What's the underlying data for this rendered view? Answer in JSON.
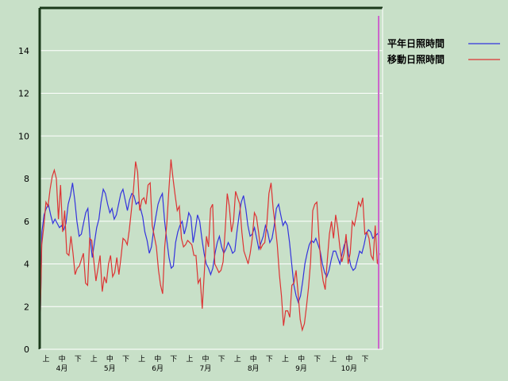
{
  "chart_data": {
    "type": "line",
    "ylim": [
      0,
      16
    ],
    "yticks": [
      "0",
      "2",
      "4",
      "6",
      "8",
      "10",
      "12",
      "14"
    ],
    "grid": true,
    "legend_position": "top-right",
    "x_dekad_labels": [
      "上",
      "中",
      "下",
      "上",
      "中",
      "下",
      "上",
      "中",
      "下",
      "上",
      "中",
      "下",
      "上",
      "中",
      "下",
      "上",
      "中",
      "下",
      "上",
      "中",
      "下"
    ],
    "x_month_labels": [
      "4月",
      "5月",
      "6月",
      "7月",
      "8月",
      "9月",
      "10月"
    ],
    "series": [
      {
        "name": "平年日照時間",
        "color": "#3333dd",
        "values": [
          0.0,
          5.5,
          6.3,
          6.6,
          6.8,
          6.3,
          5.9,
          6.1,
          5.9,
          5.7,
          5.8,
          5.6,
          5.9,
          6.8,
          7.2,
          7.8,
          7.0,
          6.0,
          5.3,
          5.4,
          5.9,
          6.4,
          6.6,
          5.2,
          4.3,
          5.0,
          5.7,
          6.1,
          6.9,
          7.5,
          7.3,
          6.8,
          6.4,
          6.6,
          6.1,
          6.3,
          6.8,
          7.3,
          7.5,
          7.0,
          6.5,
          7.0,
          7.3,
          7.2,
          6.8,
          6.9,
          6.6,
          6.2,
          5.5,
          5.1,
          4.5,
          4.8,
          5.6,
          6.2,
          6.8,
          7.1,
          7.3,
          6.0,
          5.1,
          4.3,
          3.8,
          3.9,
          5.0,
          5.5,
          5.8,
          6.0,
          5.4,
          5.8,
          6.4,
          6.2,
          5.0,
          5.6,
          6.3,
          6.0,
          5.2,
          4.5,
          4.0,
          3.8,
          3.5,
          3.8,
          4.5,
          5.0,
          5.3,
          4.8,
          4.5,
          4.7,
          5.0,
          4.8,
          4.5,
          4.6,
          5.5,
          6.3,
          6.9,
          7.2,
          6.6,
          5.8,
          5.3,
          5.4,
          5.7,
          5.2,
          4.7,
          5.0,
          5.3,
          5.8,
          5.5,
          5.0,
          5.2,
          5.8,
          6.6,
          6.8,
          6.3,
          5.8,
          6.0,
          5.8,
          5.0,
          4.0,
          3.0,
          2.5,
          2.2,
          2.5,
          3.2,
          4.0,
          4.5,
          4.9,
          5.1,
          5.0,
          5.2,
          4.9,
          4.6,
          4.0,
          3.6,
          3.4,
          3.7,
          4.2,
          4.6,
          4.6,
          4.3,
          4.0,
          4.5,
          4.9,
          5.1,
          4.4,
          3.9,
          3.7,
          3.8,
          4.2,
          4.6,
          4.5,
          4.9,
          5.4,
          5.6,
          5.5,
          5.2,
          5.3,
          5.4,
          5.5
        ]
      },
      {
        "name": "移動日照時間",
        "color": "#dd3333",
        "values": [
          0.0,
          4.9,
          5.8,
          6.9,
          6.7,
          7.5,
          8.1,
          8.4,
          8.0,
          6.1,
          7.7,
          5.5,
          6.5,
          4.5,
          4.4,
          5.3,
          4.5,
          3.5,
          3.8,
          3.9,
          4.2,
          4.5,
          3.1,
          3.0,
          5.2,
          5.1,
          4.1,
          3.2,
          3.8,
          4.4,
          2.7,
          3.4,
          3.1,
          4.0,
          4.4,
          3.4,
          3.6,
          4.3,
          3.5,
          4.3,
          5.2,
          5.1,
          4.9,
          5.6,
          6.5,
          7.5,
          8.8,
          8.3,
          6.5,
          7.0,
          7.1,
          6.8,
          7.7,
          7.8,
          5.8,
          5.3,
          4.8,
          3.7,
          3.0,
          2.6,
          4.8,
          5.9,
          7.5,
          8.9,
          8.0,
          7.2,
          6.5,
          6.7,
          5.2,
          4.8,
          4.9,
          5.1,
          5.0,
          4.9,
          4.4,
          4.4,
          3.1,
          3.3,
          1.9,
          3.6,
          5.3,
          4.8,
          6.6,
          6.8,
          4.0,
          3.8,
          3.6,
          3.7,
          4.1,
          5.6,
          7.3,
          6.7,
          5.5,
          6.0,
          7.4,
          7.1,
          6.8,
          5.5,
          4.6,
          4.3,
          4.0,
          4.5,
          5.2,
          6.4,
          6.2,
          5.5,
          4.7,
          4.9,
          5.0,
          5.9,
          7.3,
          7.8,
          6.6,
          5.8,
          4.9,
          3.5,
          2.5,
          1.1,
          1.8,
          1.8,
          1.5,
          3.0,
          3.1,
          3.7,
          2.6,
          1.4,
          0.9,
          1.2,
          2.0,
          2.9,
          4.1,
          6.5,
          6.8,
          6.9,
          5.2,
          3.9,
          3.2,
          2.8,
          4.2,
          5.4,
          6.0,
          5.2,
          6.3,
          5.7,
          4.8,
          4.1,
          4.5,
          5.4,
          4.0,
          4.5,
          6.0,
          5.8,
          6.3,
          6.9,
          6.7,
          7.1,
          5.4,
          5.5,
          5.2,
          4.4,
          4.2,
          5.8,
          4.0,
          4.5
        ]
      }
    ]
  }
}
